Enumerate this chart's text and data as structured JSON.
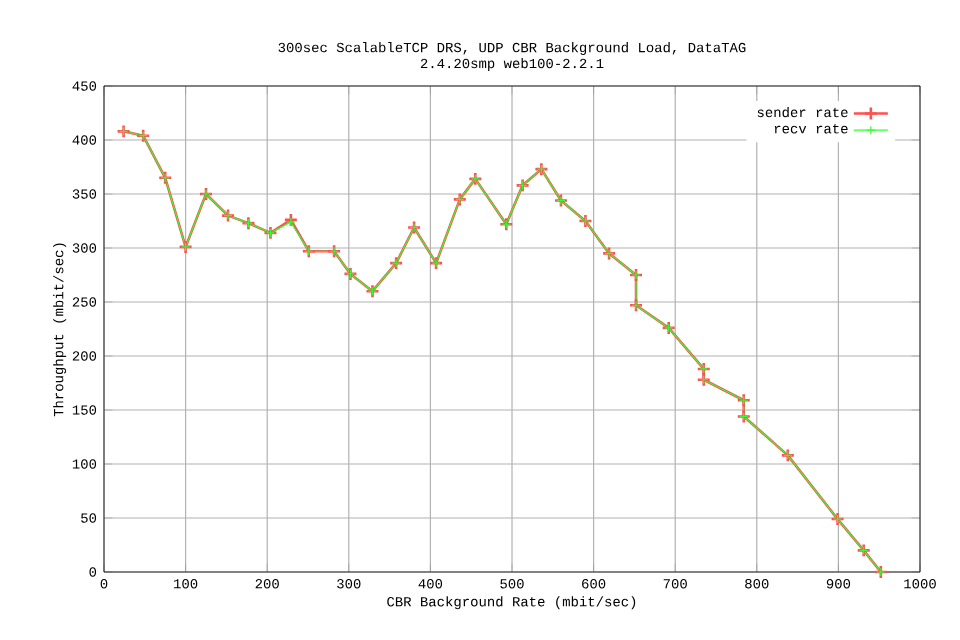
{
  "chart_data": {
    "type": "line",
    "title": "300sec ScalableTCP DRS, UDP CBR Background Load, DataTAG",
    "subtitle": "2.4.20smp web100-2.2.1",
    "xlabel": "CBR Background Rate (mbit/sec)",
    "ylabel": "Throughput (mbit/sec)",
    "xlim": [
      0,
      1000
    ],
    "xticks": [
      0,
      100,
      200,
      300,
      400,
      500,
      600,
      700,
      800,
      900,
      1000
    ],
    "ylim": [
      0,
      450
    ],
    "yticks": [
      0,
      50,
      100,
      150,
      200,
      250,
      300,
      350,
      400,
      450
    ],
    "grid": true,
    "legend": "top right",
    "marker": "cross",
    "x": [
      24,
      48,
      75,
      100,
      125,
      152,
      177,
      204,
      229,
      251,
      282,
      302,
      329,
      358,
      380,
      407,
      436,
      455,
      493,
      513,
      536,
      560,
      590,
      619,
      652,
      652,
      692,
      735,
      735,
      784,
      784,
      838,
      899,
      931,
      952
    ],
    "series": [
      {
        "name": "sender rate",
        "color": "#ff5050",
        "values": [
          408,
          404,
          365,
          301,
          350,
          330,
          323,
          314,
          326,
          297,
          297,
          276,
          260,
          286,
          319,
          286,
          345,
          364,
          322,
          358,
          373,
          344,
          325,
          295,
          275,
          247,
          226,
          188,
          178,
          159,
          144,
          108,
          49,
          20,
          0
        ]
      },
      {
        "name": "recv rate",
        "color": "#30ff30",
        "values": [
          408,
          404,
          365,
          301,
          350,
          330,
          323,
          314,
          324,
          297,
          297,
          276,
          260,
          286,
          319,
          286,
          345,
          364,
          322,
          358,
          373,
          344,
          325,
          295,
          275,
          247,
          226,
          188,
          178,
          159,
          144,
          108,
          49,
          20,
          0
        ]
      }
    ]
  }
}
